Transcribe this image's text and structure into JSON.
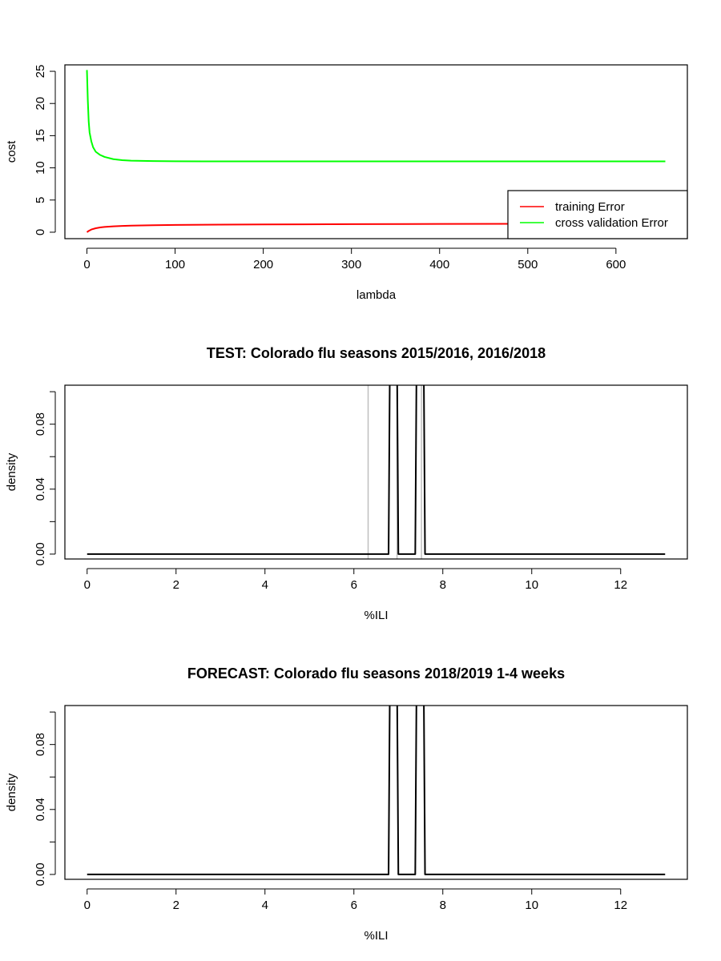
{
  "chart_data": [
    {
      "type": "line",
      "title": "",
      "xlabel": "lambda",
      "ylabel": "cost",
      "xlim": [
        -25,
        681
      ],
      "ylim": [
        -1,
        26
      ],
      "x_ticks": [
        0,
        100,
        200,
        300,
        400,
        500,
        600
      ],
      "y_ticks": [
        0,
        5,
        10,
        15,
        20,
        25
      ],
      "legend": {
        "position": "bottom-right",
        "entries": [
          "training Error",
          "cross validation Error"
        ]
      },
      "colors": {
        "training": "#ff0000",
        "cv": "#00ff00"
      },
      "series": [
        {
          "name": "training Error",
          "color": "#ff0000",
          "x": [
            0,
            2,
            5,
            10,
            15,
            20,
            30,
            40,
            50,
            75,
            100,
            150,
            200,
            300,
            400,
            500,
            656
          ],
          "y": [
            0.0,
            0.2,
            0.42,
            0.62,
            0.74,
            0.82,
            0.92,
            0.98,
            1.02,
            1.09,
            1.13,
            1.18,
            1.21,
            1.25,
            1.28,
            1.3,
            1.32
          ]
        },
        {
          "name": "cross validation Error",
          "color": "#00ff00",
          "x": [
            0,
            1,
            2,
            3,
            5,
            7,
            10,
            15,
            20,
            30,
            40,
            50,
            75,
            100,
            150,
            200,
            300,
            400,
            500,
            656
          ],
          "y": [
            25.2,
            20.5,
            17.2,
            15.5,
            14.1,
            13.2,
            12.5,
            12.0,
            11.7,
            11.35,
            11.2,
            11.12,
            11.05,
            11.02,
            11.0,
            11.0,
            11.0,
            11.0,
            11.0,
            11.0
          ]
        }
      ]
    },
    {
      "type": "line",
      "title": "TEST: Colorado  flu seasons 2015/2016, 2016/2018",
      "xlabel": "%ILI",
      "ylabel": "density",
      "xlim": [
        -0.5,
        13.5
      ],
      "ylim": [
        -0.003,
        0.104
      ],
      "x_ticks": [
        0,
        2,
        4,
        6,
        8,
        10,
        12
      ],
      "y_ticks": [
        0.0,
        0.02,
        0.04,
        0.06,
        0.08,
        0.1
      ],
      "y_tick_labels": [
        "0.00",
        "",
        "0.04",
        "",
        "0.08",
        ""
      ],
      "colors": {
        "density": "#000000",
        "vlines": "#bebebe"
      },
      "vertical_lines": [
        6.32,
        6.97,
        7.52
      ],
      "series": [
        {
          "color": "#000000",
          "x": [
            0,
            6.78,
            6.83,
            6.95,
            7.0,
            7.38,
            7.43,
            7.55,
            7.6,
            13
          ],
          "y": [
            0,
            0,
            0.2,
            0.2,
            0,
            0,
            0.2,
            0.2,
            0,
            0
          ]
        }
      ]
    },
    {
      "type": "line",
      "title": "FORECAST: Colorado flu seasons 2018/2019 1-4 weeks",
      "xlabel": "%ILI",
      "ylabel": "density",
      "xlim": [
        -0.5,
        13.5
      ],
      "ylim": [
        -0.003,
        0.104
      ],
      "x_ticks": [
        0,
        2,
        4,
        6,
        8,
        10,
        12
      ],
      "y_ticks": [
        0.0,
        0.02,
        0.04,
        0.06,
        0.08,
        0.1
      ],
      "y_tick_labels": [
        "0.00",
        "",
        "0.04",
        "",
        "0.08",
        ""
      ],
      "colors": {
        "density": "#000000"
      },
      "vertical_lines": [],
      "series": [
        {
          "color": "#000000",
          "x": [
            0,
            6.78,
            6.83,
            6.95,
            7.0,
            7.38,
            7.43,
            7.55,
            7.6,
            13
          ],
          "y": [
            0,
            0,
            0.2,
            0.2,
            0,
            0,
            0.2,
            0.2,
            0,
            0
          ]
        }
      ]
    }
  ]
}
